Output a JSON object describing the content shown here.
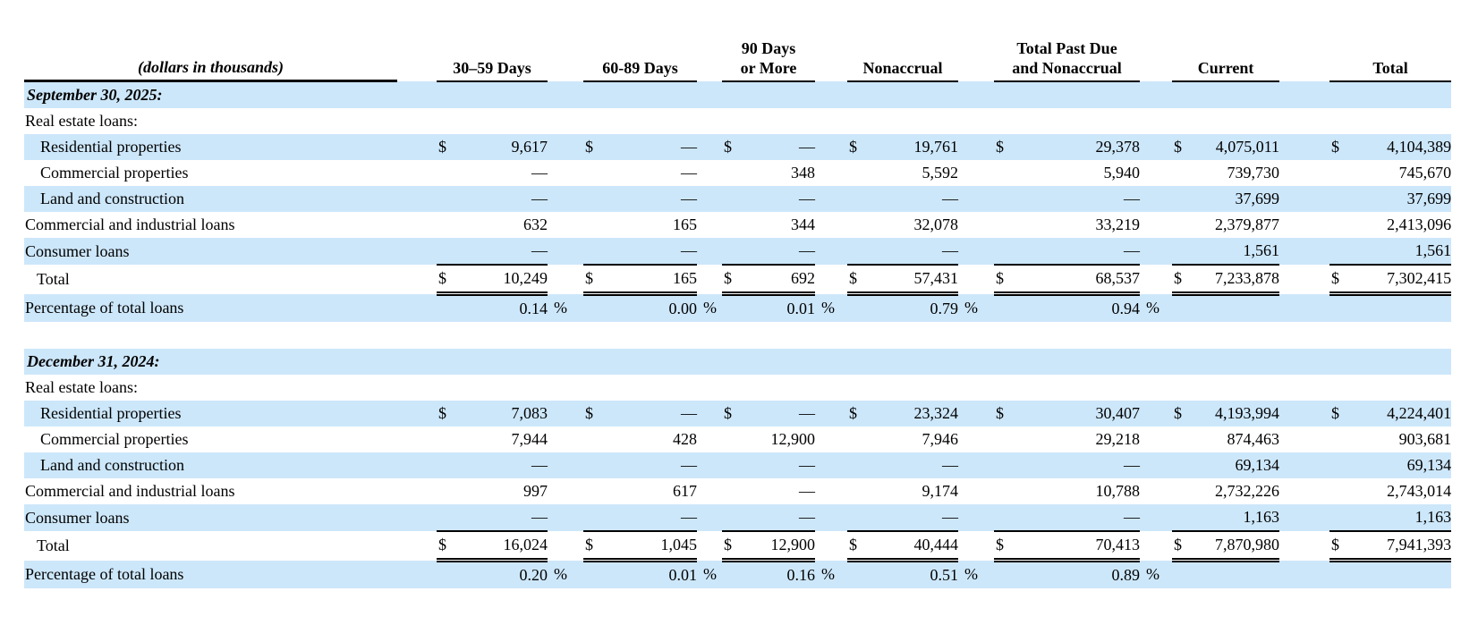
{
  "theme": {
    "row_highlight": "#cde7fa",
    "text_color": "#000000",
    "rule_color": "#000000"
  },
  "table": {
    "caption": "(dollars in thousands)",
    "column_headers": [
      [
        "30–59 Days"
      ],
      [
        "60-89 Days"
      ],
      [
        "90 Days",
        "or More"
      ],
      [
        "Nonaccrual"
      ],
      [
        "Total Past Due",
        "and Nonaccrual"
      ],
      [
        "Current"
      ],
      [
        "Total"
      ]
    ],
    "symbols": {
      "dollar": "$",
      "percent": "%"
    },
    "sections": [
      {
        "heading": "September 30, 2025:",
        "rows": [
          {
            "label": "Real estate loans:",
            "category": true
          },
          {
            "label": "Residential properties",
            "indent": true,
            "dollar_sign": true,
            "values": [
              "9,617",
              "—",
              "—",
              "19,761",
              "29,378",
              "4,075,011",
              "4,104,389"
            ]
          },
          {
            "label": "Commercial properties",
            "indent": true,
            "values": [
              "—",
              "—",
              "348",
              "5,592",
              "5,940",
              "739,730",
              "745,670"
            ]
          },
          {
            "label": "Land and construction",
            "indent": true,
            "values": [
              "—",
              "—",
              "—",
              "—",
              "—",
              "37,699",
              "37,699"
            ]
          },
          {
            "label": "Commercial and industrial loans",
            "values": [
              "632",
              "165",
              "344",
              "32,078",
              "33,219",
              "2,379,877",
              "2,413,096"
            ]
          },
          {
            "label": "Consumer loans",
            "rule_below": true,
            "values": [
              "—",
              "—",
              "—",
              "—",
              "—",
              "1,561",
              "1,561"
            ]
          },
          {
            "label": "Total",
            "total_row": true,
            "dollar_sign": true,
            "double_rule": true,
            "values": [
              "10,249",
              "165",
              "692",
              "57,431",
              "68,537",
              "7,233,878",
              "7,302,415"
            ]
          },
          {
            "label": "Percentage of total loans",
            "percent": true,
            "values": [
              "0.14",
              "0.00",
              "0.01",
              "0.79",
              "0.94",
              "",
              ""
            ]
          }
        ]
      },
      {
        "heading": "December 31, 2024:",
        "rows": [
          {
            "label": "Real estate loans:",
            "category": true
          },
          {
            "label": "Residential properties",
            "indent": true,
            "dollar_sign": true,
            "values": [
              "7,083",
              "—",
              "—",
              "23,324",
              "30,407",
              "4,193,994",
              "4,224,401"
            ]
          },
          {
            "label": "Commercial properties",
            "indent": true,
            "values": [
              "7,944",
              "428",
              "12,900",
              "7,946",
              "29,218",
              "874,463",
              "903,681"
            ]
          },
          {
            "label": "Land and construction",
            "indent": true,
            "values": [
              "—",
              "—",
              "—",
              "—",
              "—",
              "69,134",
              "69,134"
            ]
          },
          {
            "label": "Commercial and industrial loans",
            "values": [
              "997",
              "617",
              "—",
              "9,174",
              "10,788",
              "2,732,226",
              "2,743,014"
            ]
          },
          {
            "label": "Consumer loans",
            "rule_below": true,
            "values": [
              "—",
              "—",
              "—",
              "—",
              "—",
              "1,163",
              "1,163"
            ]
          },
          {
            "label": "Total",
            "total_row": true,
            "dollar_sign": true,
            "double_rule": true,
            "values": [
              "16,024",
              "1,045",
              "12,900",
              "40,444",
              "70,413",
              "7,870,980",
              "7,941,393"
            ]
          },
          {
            "label": "Percentage of total loans",
            "percent": true,
            "values": [
              "0.20",
              "0.01",
              "0.16",
              "0.51",
              "0.89",
              "",
              ""
            ]
          }
        ]
      }
    ]
  }
}
